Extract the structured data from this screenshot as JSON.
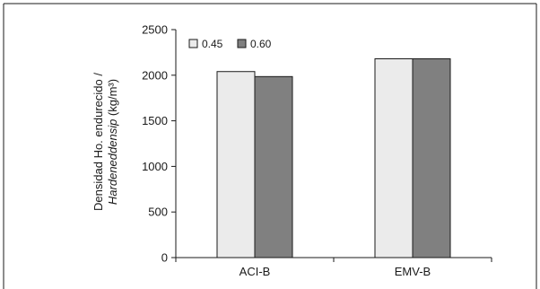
{
  "chart_data": {
    "type": "bar",
    "categories": [
      "ACI-B",
      "EMV-B"
    ],
    "series": [
      {
        "name": "0.45",
        "values": [
          2040,
          2180
        ],
        "color": "#ebebeb"
      },
      {
        "name": "0.60",
        "values": [
          1985,
          2180
        ],
        "color": "#808080"
      }
    ],
    "title": "",
    "xlabel": "",
    "ylabel": {
      "line1": "Densidad Ho. endurecido /",
      "line2_italic": "Hardeneddensip",
      "line2_unit": " (kg/m³)"
    },
    "ylim": [
      0,
      2500
    ],
    "yticks": [
      0,
      500,
      1000,
      1500,
      2000,
      2500
    ],
    "grid": false,
    "legend_position": "top-left"
  }
}
